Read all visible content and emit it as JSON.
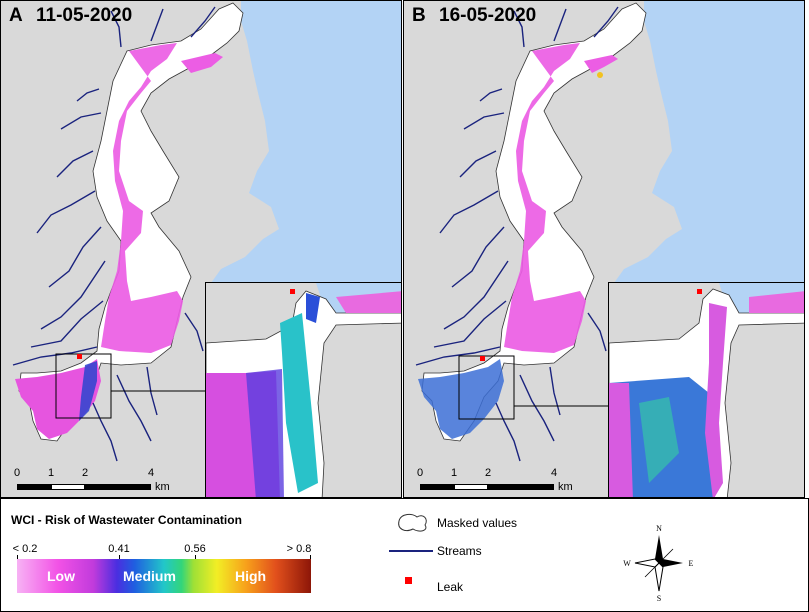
{
  "panels": [
    {
      "letter": "A",
      "date": "11-05-2020"
    },
    {
      "letter": "B",
      "date": "16-05-2020"
    }
  ],
  "scalebar": {
    "ticks": [
      "0",
      "1",
      "2",
      "4"
    ],
    "unit": "km"
  },
  "legend": {
    "title": "WCI - Risk of Wastewater Contamination",
    "breakpoints": [
      "< 0.2",
      "0.41",
      "0.56",
      "> 0.8"
    ],
    "class_labels": [
      "Low",
      "Medium",
      "High"
    ],
    "items": {
      "masked": "Masked values",
      "streams": "Streams",
      "leak": "Leak"
    },
    "compass": {
      "n": "N",
      "s": "S",
      "e": "E",
      "w": "W"
    }
  },
  "colors": {
    "land": "#d9d9d9",
    "sea": "#b3d3f5",
    "stream": "#1a237e",
    "masked": "#ffffff",
    "leak": "#ff0000",
    "low": "#f252e6",
    "medium": "#22c7c9",
    "high": "#f7a01b"
  }
}
